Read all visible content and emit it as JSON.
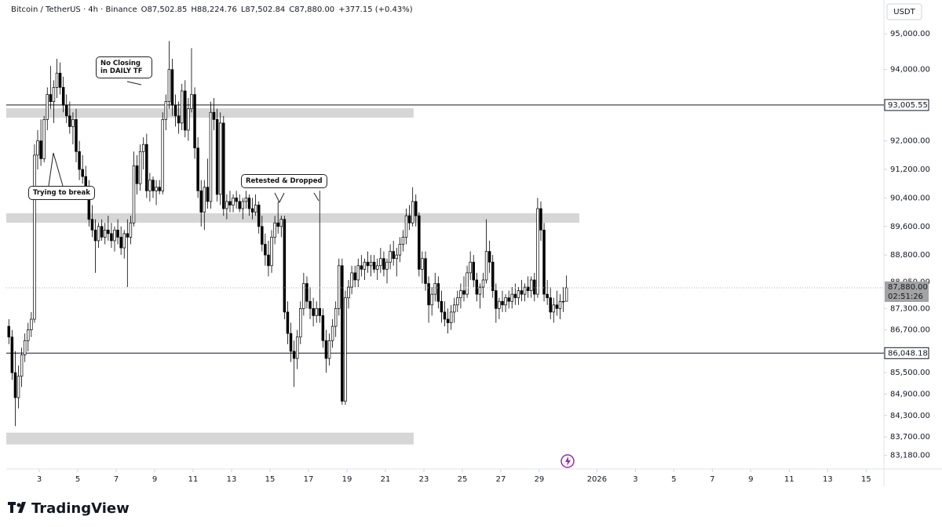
{
  "chart_data": {
    "type": "candlestick",
    "header": [
      "Bitcoin / TetherUS · 4h · Binance",
      "O87,502.85",
      "H88,224.76",
      "L87,502.84",
      "C87,880.00",
      "+377.15 (+0.43%)"
    ],
    "currency": "USDT",
    "brand": "TradingView",
    "up_color": "#ffffff",
    "down_color": "#000000",
    "xlim": [
      -0.8,
      272.8
    ],
    "ylim": [
      82800,
      95950
    ],
    "xticks": [
      {
        "value": 9.5,
        "label": "3"
      },
      {
        "value": 21.5,
        "label": "5"
      },
      {
        "value": 33.5,
        "label": "7"
      },
      {
        "value": 45.5,
        "label": "9"
      },
      {
        "value": 57.5,
        "label": "11"
      },
      {
        "value": 69.5,
        "label": "13"
      },
      {
        "value": 81.5,
        "label": "15"
      },
      {
        "value": 93.5,
        "label": "17"
      },
      {
        "value": 105.5,
        "label": "19"
      },
      {
        "value": 117.5,
        "label": "21"
      },
      {
        "value": 129.5,
        "label": "23"
      },
      {
        "value": 141.5,
        "label": "25"
      },
      {
        "value": 153.5,
        "label": "27"
      },
      {
        "value": 165.5,
        "label": "29"
      },
      {
        "value": 183.5,
        "label": "2026"
      },
      {
        "value": 195.5,
        "label": "3"
      },
      {
        "value": 207.5,
        "label": "5"
      },
      {
        "value": 219.5,
        "label": "7"
      },
      {
        "value": 231.5,
        "label": "9"
      },
      {
        "value": 243.5,
        "label": "11"
      },
      {
        "value": 255.5,
        "label": "13"
      },
      {
        "value": 267.5,
        "label": "15"
      }
    ],
    "yticks": [
      {
        "value": 95000,
        "label": "95,000.00"
      },
      {
        "value": 94000,
        "label": "94,000.00"
      },
      {
        "value": 92000,
        "label": "92,000.00"
      },
      {
        "value": 91200,
        "label": "91,200.00"
      },
      {
        "value": 90400,
        "label": "90,400.00"
      },
      {
        "value": 89600,
        "label": "89,600.00"
      },
      {
        "value": 88800,
        "label": "88,800.00"
      },
      {
        "value": 88050,
        "label": "88,050.00"
      },
      {
        "value": 87300,
        "label": "87,300.00"
      },
      {
        "value": 86700,
        "label": "86,700.00"
      },
      {
        "value": 85500,
        "label": "85,500.00"
      },
      {
        "value": 84900,
        "label": "84,900.00"
      },
      {
        "value": 84300,
        "label": "84,300.00"
      },
      {
        "value": 83700,
        "label": "83,700.00"
      },
      {
        "value": 83180,
        "label": "83,180.00"
      }
    ],
    "hlines": [
      {
        "value": 93005.55,
        "label": "93,005.55"
      },
      {
        "value": 86048.18,
        "label": "86,048.18"
      }
    ],
    "price_tag": {
      "value": 87880,
      "label": "87,880.00",
      "countdown": "02:51:26"
    },
    "zones": [
      {
        "x": [
          -0.8,
          126.3
        ],
        "y": [
          92650,
          92913
        ]
      },
      {
        "x": [
          -0.8,
          178
        ],
        "y": [
          89705,
          89970
        ]
      },
      {
        "x": [
          -0.8,
          126.3
        ],
        "y": [
          83488,
          83818
        ]
      }
    ],
    "annotations": [
      "No Closing in DAILY TF",
      "Trying to break",
      "Retested & Dropped"
    ],
    "x": [
      0,
      1,
      2,
      3,
      4,
      5,
      6,
      7,
      8,
      9,
      10,
      11,
      12,
      13,
      14,
      15,
      16,
      17,
      18,
      19,
      20,
      21,
      22,
      23,
      24,
      25,
      26,
      27,
      28,
      29,
      30,
      31,
      32,
      33,
      34,
      35,
      36,
      37,
      38,
      39,
      40,
      41,
      42,
      43,
      44,
      45,
      46,
      47,
      48,
      49,
      50,
      51,
      52,
      53,
      54,
      55,
      56,
      57,
      58,
      59,
      60,
      61,
      62,
      63,
      64,
      65,
      66,
      67,
      68,
      69,
      70,
      71,
      72,
      73,
      74,
      75,
      76,
      77,
      78,
      79,
      80,
      81,
      82,
      83,
      84,
      85,
      86,
      87,
      88,
      89,
      90,
      91,
      92,
      93,
      94,
      95,
      96,
      97,
      98,
      99,
      100,
      101,
      102,
      103,
      104,
      105,
      106,
      107,
      108,
      109,
      110,
      111,
      112,
      113,
      114,
      115,
      116,
      117,
      118,
      119,
      120,
      121,
      122,
      123,
      124,
      125,
      126,
      127,
      128,
      129,
      130,
      131,
      132,
      133,
      134,
      135,
      136,
      137,
      138,
      139,
      140,
      141,
      142,
      143,
      144,
      145,
      146,
      147,
      148,
      149,
      150,
      151,
      152,
      153,
      154,
      155,
      156,
      157,
      158,
      159,
      160,
      161,
      162,
      163,
      164,
      165,
      166,
      167,
      168,
      169,
      170,
      171,
      172,
      173,
      174
    ],
    "ohlc": [
      [
        86800,
        87000,
        86300,
        86500
      ],
      [
        86500,
        86700,
        85300,
        85500
      ],
      [
        85500,
        86100,
        84000,
        84800
      ],
      [
        84800,
        85700,
        84500,
        85400
      ],
      [
        85400,
        86200,
        85100,
        86000
      ],
      [
        86000,
        86600,
        85800,
        86400
      ],
      [
        86400,
        86900,
        86100,
        86700
      ],
      [
        86700,
        87200,
        86500,
        87000
      ],
      [
        87000,
        91900,
        86900,
        91600
      ],
      [
        91600,
        92300,
        91200,
        92000
      ],
      [
        92000,
        92600,
        91300,
        91500
      ],
      [
        91500,
        92700,
        91400,
        92600
      ],
      [
        92600,
        93500,
        92300,
        93300
      ],
      [
        93300,
        94100,
        92900,
        93100
      ],
      [
        93100,
        93700,
        92500,
        93500
      ],
      [
        93500,
        94300,
        93200,
        93900
      ],
      [
        93900,
        94200,
        93300,
        93500
      ],
      [
        93500,
        93800,
        92800,
        93000
      ],
      [
        93000,
        93300,
        92500,
        92700
      ],
      [
        92700,
        93100,
        92200,
        92400
      ],
      [
        92400,
        92800,
        91900,
        92600
      ],
      [
        92600,
        92900,
        91400,
        91700
      ],
      [
        91700,
        92000,
        90900,
        91200
      ],
      [
        91200,
        91600,
        90800,
        91000
      ],
      [
        91000,
        91300,
        90500,
        90700
      ],
      [
        90700,
        90900,
        89600,
        89800
      ],
      [
        89800,
        90200,
        89300,
        89500
      ],
      [
        89500,
        89800,
        88300,
        89200
      ],
      [
        89200,
        89700,
        89000,
        89600
      ],
      [
        89600,
        89800,
        89200,
        89300
      ],
      [
        89300,
        89700,
        89100,
        89500
      ],
      [
        89500,
        89900,
        89200,
        89400
      ],
      [
        89400,
        89700,
        89000,
        89200
      ],
      [
        89200,
        89600,
        88900,
        89500
      ],
      [
        89500,
        89800,
        89100,
        89300
      ],
      [
        89300,
        89600,
        88800,
        89000
      ],
      [
        89000,
        89500,
        88700,
        89400
      ],
      [
        89400,
        89800,
        87900,
        89300
      ],
      [
        89300,
        89900,
        89100,
        89700
      ],
      [
        89700,
        91700,
        89600,
        91300
      ],
      [
        91300,
        91600,
        90500,
        90800
      ],
      [
        90800,
        91900,
        90600,
        91700
      ],
      [
        91700,
        92100,
        91200,
        91900
      ],
      [
        91900,
        92200,
        90400,
        90600
      ],
      [
        90600,
        91100,
        90300,
        90900
      ],
      [
        90900,
        91000,
        90400,
        90600
      ],
      [
        90600,
        90900,
        90200,
        90700
      ],
      [
        90700,
        90900,
        90500,
        90600
      ],
      [
        90600,
        92800,
        90500,
        92600
      ],
      [
        92600,
        93300,
        92300,
        93100
      ],
      [
        93100,
        94800,
        92900,
        94000
      ],
      [
        94000,
        94300,
        92700,
        93000
      ],
      [
        93000,
        93300,
        92400,
        92700
      ],
      [
        92700,
        93100,
        92200,
        92500
      ],
      [
        92500,
        93600,
        92300,
        93400
      ],
      [
        93400,
        93700,
        92100,
        92300
      ],
      [
        92300,
        93200,
        92000,
        92900
      ],
      [
        92900,
        94600,
        92800,
        93300
      ],
      [
        93300,
        93500,
        91500,
        91800
      ],
      [
        91800,
        92100,
        90400,
        90600
      ],
      [
        90600,
        90900,
        89600,
        90000
      ],
      [
        90000,
        90900,
        89500,
        90700
      ],
      [
        90700,
        91500,
        90100,
        90300
      ],
      [
        90300,
        93100,
        90100,
        92800
      ],
      [
        92800,
        93200,
        92300,
        92600
      ],
      [
        92600,
        92900,
        90300,
        90500
      ],
      [
        90500,
        92800,
        90200,
        92500
      ],
      [
        92500,
        92700,
        89900,
        90100
      ],
      [
        90100,
        90500,
        89800,
        90300
      ],
      [
        90300,
        90600,
        90000,
        90200
      ],
      [
        90200,
        90500,
        90000,
        90400
      ],
      [
        90400,
        90600,
        90100,
        90300
      ],
      [
        90300,
        90500,
        90000,
        90100
      ],
      [
        90100,
        90400,
        89800,
        90300
      ],
      [
        90300,
        90600,
        90100,
        90400
      ],
      [
        90400,
        90500,
        89900,
        90100
      ],
      [
        90100,
        90400,
        89800,
        90000
      ],
      [
        90000,
        90500,
        89900,
        90200
      ],
      [
        90200,
        90300,
        89400,
        89600
      ],
      [
        89600,
        89900,
        88900,
        89100
      ],
      [
        89100,
        89400,
        88500,
        88800
      ],
      [
        88800,
        89200,
        88200,
        88500
      ],
      [
        88500,
        89500,
        88300,
        89300
      ],
      [
        89300,
        89900,
        89100,
        89700
      ],
      [
        89700,
        90300,
        89400,
        89600
      ],
      [
        89600,
        89900,
        89300,
        89800
      ],
      [
        89800,
        89900,
        87000,
        87200
      ],
      [
        87200,
        87500,
        86300,
        86600
      ],
      [
        86600,
        86900,
        85800,
        86100
      ],
      [
        86100,
        86400,
        85100,
        85900
      ],
      [
        85900,
        86700,
        85600,
        86500
      ],
      [
        86500,
        87500,
        86300,
        87300
      ],
      [
        87300,
        88300,
        87100,
        88000
      ],
      [
        88000,
        88200,
        87300,
        87500
      ],
      [
        87500,
        87900,
        87000,
        87300
      ],
      [
        87300,
        87600,
        86800,
        87100
      ],
      [
        87100,
        87500,
        86900,
        87300
      ],
      [
        87300,
        90600,
        86900,
        87100
      ],
      [
        87100,
        87300,
        86200,
        86400
      ],
      [
        86400,
        86700,
        85500,
        85900
      ],
      [
        85900,
        86600,
        85700,
        86400
      ],
      [
        86400,
        87000,
        86200,
        86800
      ],
      [
        86800,
        87500,
        86500,
        87300
      ],
      [
        87300,
        88700,
        87100,
        88500
      ],
      [
        88500,
        88700,
        84600,
        84700
      ],
      [
        84700,
        87800,
        84600,
        87600
      ],
      [
        87600,
        88100,
        87300,
        87900
      ],
      [
        87900,
        88500,
        87700,
        88300
      ],
      [
        88300,
        88500,
        87900,
        88100
      ],
      [
        88100,
        88700,
        87900,
        88500
      ],
      [
        88500,
        88800,
        88200,
        88400
      ],
      [
        88400,
        88700,
        88100,
        88600
      ],
      [
        88600,
        88900,
        88300,
        88500
      ],
      [
        88500,
        88800,
        88200,
        88600
      ],
      [
        88600,
        88800,
        88300,
        88400
      ],
      [
        88400,
        88700,
        88100,
        88500
      ],
      [
        88500,
        89000,
        88300,
        88700
      ],
      [
        88700,
        88900,
        88200,
        88400
      ],
      [
        88400,
        88700,
        88000,
        88600
      ],
      [
        88600,
        89100,
        88400,
        88900
      ],
      [
        88900,
        89200,
        88500,
        88700
      ],
      [
        88700,
        89000,
        88200,
        88800
      ],
      [
        88800,
        89300,
        88600,
        89100
      ],
      [
        89100,
        89500,
        88900,
        89300
      ],
      [
        89300,
        90100,
        89100,
        89900
      ],
      [
        89900,
        90200,
        89500,
        89700
      ],
      [
        89700,
        90700,
        89600,
        90300
      ],
      [
        90300,
        90500,
        89600,
        89900
      ],
      [
        89900,
        90000,
        88200,
        88400
      ],
      [
        88400,
        88900,
        88000,
        88700
      ],
      [
        88700,
        88900,
        87800,
        88000
      ],
      [
        88000,
        88200,
        86900,
        87400
      ],
      [
        87400,
        87900,
        87100,
        87700
      ],
      [
        87700,
        88300,
        87500,
        88000
      ],
      [
        88000,
        88200,
        87300,
        87500
      ],
      [
        87500,
        87800,
        86900,
        87200
      ],
      [
        87200,
        87500,
        86800,
        87000
      ],
      [
        87000,
        87300,
        86600,
        86900
      ],
      [
        86900,
        87400,
        86700,
        87200
      ],
      [
        87200,
        87600,
        86900,
        87400
      ],
      [
        87400,
        87800,
        87200,
        87600
      ],
      [
        87600,
        88000,
        87300,
        87800
      ],
      [
        87800,
        88200,
        87500,
        87700
      ],
      [
        87700,
        88500,
        87600,
        88300
      ],
      [
        88300,
        88900,
        88100,
        88600
      ],
      [
        88600,
        88800,
        87900,
        88100
      ],
      [
        88100,
        88300,
        87500,
        87700
      ],
      [
        87700,
        88000,
        87300,
        87900
      ],
      [
        87900,
        88300,
        87600,
        88100
      ],
      [
        88100,
        89800,
        88000,
        88900
      ],
      [
        88900,
        89200,
        88300,
        88600
      ],
      [
        88600,
        88800,
        87600,
        87800
      ],
      [
        87800,
        88000,
        86900,
        87300
      ],
      [
        87300,
        87600,
        87000,
        87500
      ],
      [
        87500,
        87800,
        87200,
        87400
      ],
      [
        87400,
        87700,
        87200,
        87600
      ],
      [
        87600,
        87800,
        87300,
        87500
      ],
      [
        87500,
        87900,
        87300,
        87700
      ],
      [
        87700,
        88000,
        87400,
        87600
      ],
      [
        87600,
        87900,
        87400,
        87800
      ],
      [
        87800,
        88100,
        87500,
        87700
      ],
      [
        87700,
        88000,
        87500,
        87900
      ],
      [
        87900,
        88200,
        87600,
        87800
      ],
      [
        87800,
        88200,
        87600,
        88100
      ],
      [
        88100,
        88300,
        87500,
        87700
      ],
      [
        87700,
        90400,
        87600,
        90100
      ],
      [
        90100,
        90300,
        89200,
        89500
      ],
      [
        89500,
        89700,
        87500,
        87700
      ],
      [
        87700,
        88100,
        87400,
        87600
      ],
      [
        87600,
        87900,
        87000,
        87200
      ],
      [
        87200,
        87600,
        86900,
        87400
      ],
      [
        87400,
        87800,
        87100,
        87300
      ],
      [
        87300,
        87700,
        87000,
        87500
      ],
      [
        87500,
        87900,
        87200,
        87500
      ],
      [
        87502.85,
        88224.76,
        87502.84,
        87880
      ]
    ]
  }
}
